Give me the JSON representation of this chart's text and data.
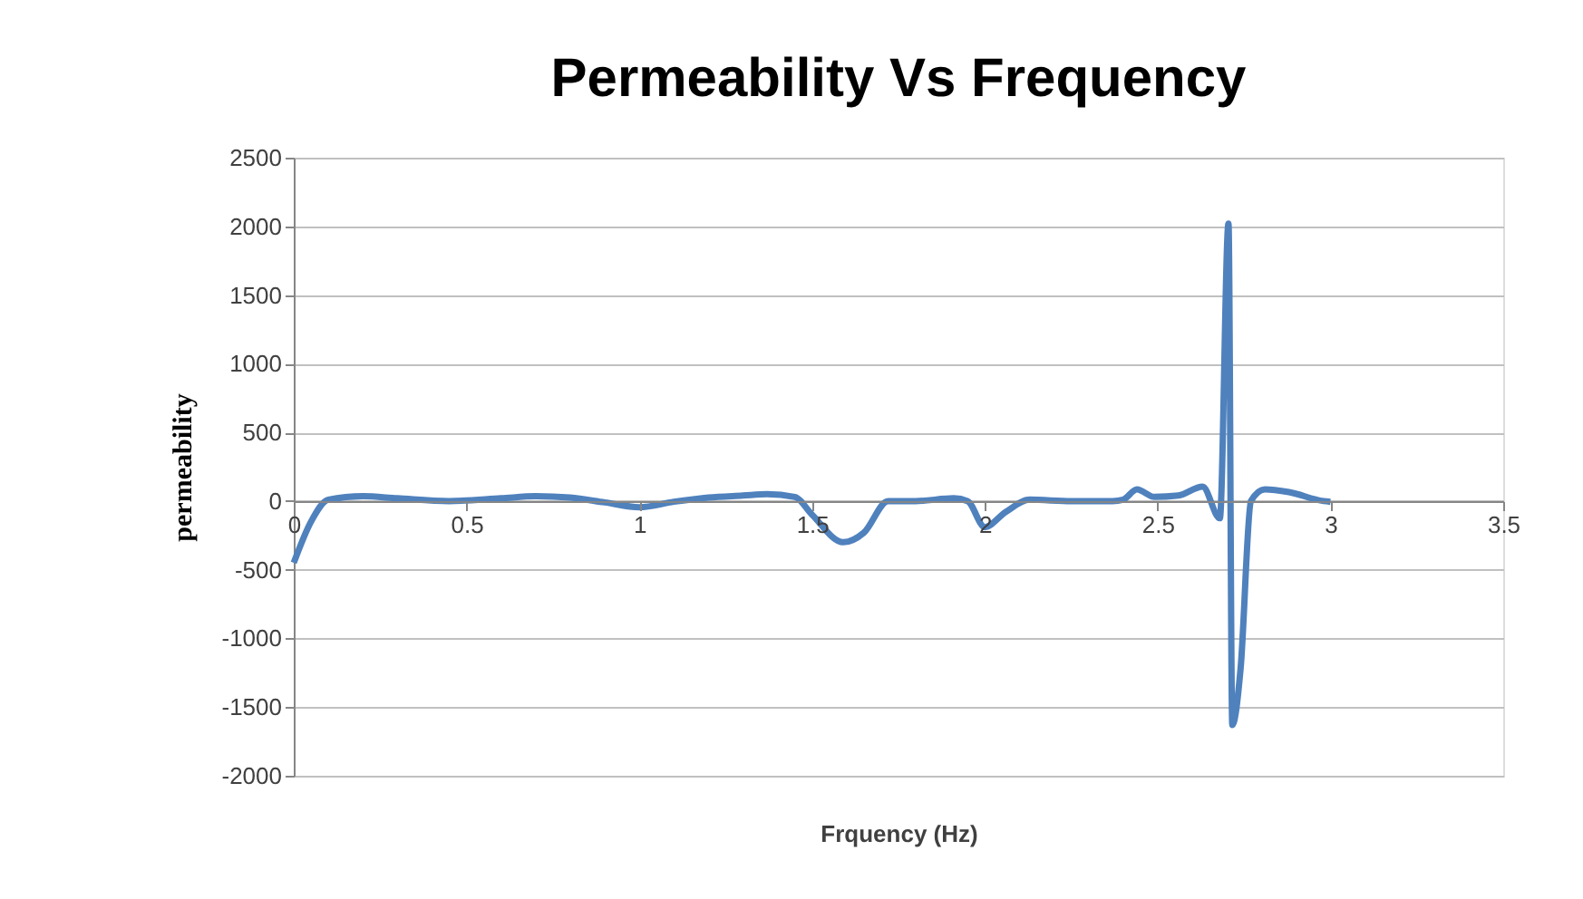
{
  "chart_data": {
    "type": "line",
    "title": "Permeability Vs Frequency",
    "xlabel": "Frquency (Hz)",
    "ylabel": "permeability",
    "x": [
      0,
      0.05,
      0.1,
      0.2,
      0.3,
      0.45,
      0.6,
      0.7,
      0.8,
      0.9,
      1.0,
      1.1,
      1.2,
      1.3,
      1.37,
      1.45,
      1.5,
      1.59,
      1.65,
      1.72,
      1.8,
      1.91,
      1.95,
      2.0,
      2.06,
      2.13,
      2.25,
      2.37,
      2.4,
      2.44,
      2.49,
      2.56,
      2.63,
      2.68,
      2.705,
      2.716,
      2.74,
      2.77,
      2.81,
      2.88,
      2.98,
      3.0
    ],
    "series": [
      {
        "color": "#4f81bd",
        "values": [
          -450,
          -150,
          10,
          35,
          20,
          0,
          20,
          35,
          25,
          -10,
          -45,
          -5,
          25,
          40,
          50,
          30,
          -100,
          -300,
          -230,
          0,
          0,
          20,
          0,
          -190,
          -80,
          10,
          0,
          0,
          10,
          85,
          30,
          40,
          105,
          -125,
          2020,
          -1630,
          -1220,
          0,
          85,
          65,
          0,
          -5
        ]
      }
    ],
    "xlim": [
      0,
      3.5
    ],
    "xticks": [
      0,
      0.5,
      1,
      1.5,
      2,
      2.5,
      3,
      3.5
    ],
    "ylim": [
      -2000,
      2500
    ],
    "yticks": [
      -2000,
      -1500,
      -1000,
      -500,
      0,
      500,
      1000,
      1500,
      2000,
      2500
    ],
    "grid": "y",
    "legend": false,
    "marker": "none",
    "line_style": "solid"
  }
}
